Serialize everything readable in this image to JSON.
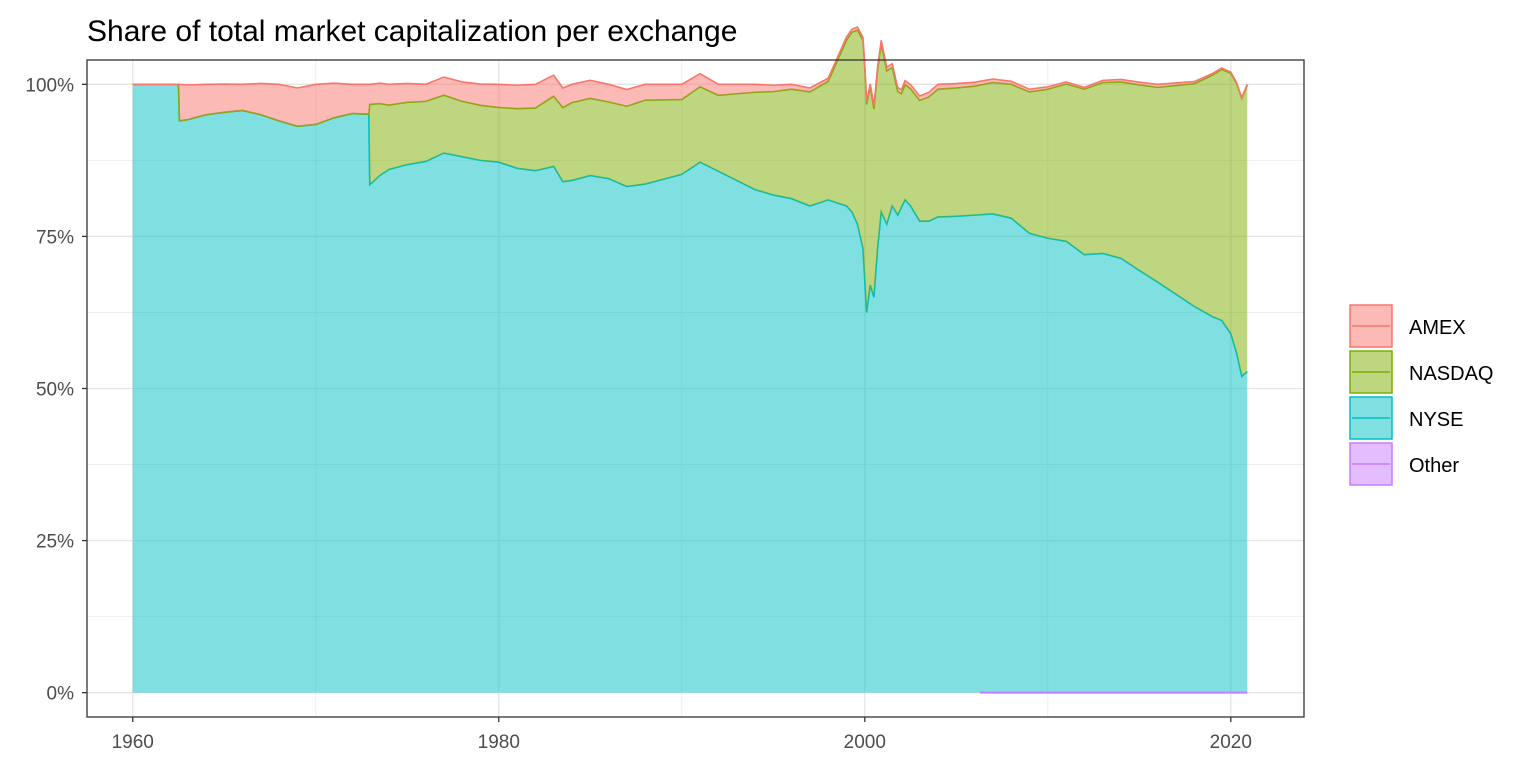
{
  "chart_data": {
    "type": "area",
    "stacked": true,
    "normalized": true,
    "title": "Share of total market capitalization per exchange",
    "xlabel": "",
    "ylabel": "",
    "xlim": [
      1957.5,
      2024.0
    ],
    "ylim": [
      -0.04,
      1.04
    ],
    "x_ticks": [
      1960,
      1980,
      2000,
      2020
    ],
    "x_tick_labels": [
      "1960",
      "1980",
      "2000",
      "2020"
    ],
    "y_ticks": [
      0,
      0.25,
      0.5,
      0.75,
      1.0
    ],
    "y_tick_labels": [
      "0%",
      "25%",
      "50%",
      "75%",
      "100%"
    ],
    "grid": true,
    "legend_position": "right",
    "colors": {
      "AMEX": "#F8766D",
      "NASDAQ": "#7CAE00",
      "NYSE": "#00BFC4",
      "Other": "#C77CFF"
    },
    "series": [
      {
        "name": "NYSE",
        "x": [
          1960.0,
          1962.5,
          1962.55,
          1963.0,
          1964.0,
          1965.0,
          1966.0,
          1967.0,
          1968.0,
          1969.0,
          1970.0,
          1971.0,
          1972.0,
          1972.9,
          1972.95,
          1973.5,
          1974.0,
          1975.0,
          1976.0,
          1977.0,
          1978.0,
          1979.0,
          1980.0,
          1981.0,
          1982.0,
          1983.0,
          1983.5,
          1984.0,
          1985.0,
          1986.0,
          1987.0,
          1988.0,
          1989.0,
          1990.0,
          1991.0,
          1992.0,
          1993.0,
          1994.0,
          1995.0,
          1996.0,
          1997.0,
          1998.0,
          1998.5,
          1999.0,
          1999.3,
          1999.6,
          1999.9,
          2000.1,
          2000.3,
          2000.5,
          2000.7,
          2000.9,
          2001.2,
          2001.5,
          2001.8,
          2002.2,
          2002.5,
          2003.0,
          2003.5,
          2004.0,
          2005.0,
          2006.0,
          2007.0,
          2008.0,
          2009.0,
          2010.0,
          2011.0,
          2012.0,
          2013.0,
          2014.0,
          2015.0,
          2016.0,
          2017.0,
          2018.0,
          2019.0,
          2019.5,
          2020.0,
          2020.3,
          2020.6,
          2020.9
        ],
        "values": [
          1.0,
          1.0,
          0.94,
          0.942,
          0.95,
          0.954,
          0.957,
          0.95,
          0.94,
          0.931,
          0.934,
          0.945,
          0.952,
          0.951,
          0.835,
          0.85,
          0.86,
          0.868,
          0.873,
          0.887,
          0.881,
          0.875,
          0.872,
          0.862,
          0.858,
          0.865,
          0.84,
          0.842,
          0.85,
          0.845,
          0.832,
          0.836,
          0.844,
          0.852,
          0.872,
          0.857,
          0.842,
          0.827,
          0.818,
          0.812,
          0.8,
          0.81,
          0.805,
          0.8,
          0.79,
          0.77,
          0.73,
          0.625,
          0.67,
          0.65,
          0.73,
          0.79,
          0.77,
          0.8,
          0.785,
          0.81,
          0.8,
          0.775,
          0.775,
          0.782,
          0.783,
          0.785,
          0.787,
          0.78,
          0.755,
          0.747,
          0.742,
          0.72,
          0.722,
          0.714,
          0.694,
          0.675,
          0.655,
          0.635,
          0.618,
          0.612,
          0.59,
          0.56,
          0.52,
          0.528
        ]
      },
      {
        "name": "NASDAQ",
        "x": [
          1960.0,
          1972.9,
          1972.95,
          1974.0,
          1976.0,
          1978.0,
          1980.0,
          1981.0,
          1982.0,
          1984.0,
          1986.0,
          1988.0,
          1990.0,
          1992.0,
          1994.0,
          1996.0,
          1998.0,
          2000.0,
          2002.0,
          2004.0,
          2006.0,
          2008.0,
          2010.0,
          2012.0,
          2014.0,
          2016.0,
          2018.0,
          2020.0,
          2020.9
        ],
        "values": [
          0.0,
          0.0,
          0.132,
          0.106,
          0.099,
          0.091,
          0.09,
          0.098,
          0.103,
          0.128,
          0.126,
          0.138,
          0.123,
          0.125,
          0.16,
          0.18,
          0.195,
          0.35,
          0.187,
          0.21,
          0.212,
          0.22,
          0.245,
          0.272,
          0.29,
          0.32,
          0.366,
          0.428,
          0.471
        ]
      },
      {
        "name": "AMEX",
        "x": [
          1960.0,
          1962.5,
          1962.55,
          1964.0,
          1966.0,
          1968.0,
          1970.0,
          1972.0,
          1972.9,
          1972.95,
          1974.0,
          1976.0,
          1978.0,
          1980.0,
          1982.0,
          1984.0,
          1986.0,
          1988.0,
          1990.0,
          1992.0,
          1994.0,
          1996.0,
          1998.0,
          2000.0,
          2004.0,
          2008.0,
          2012.0,
          2016.0,
          2020.0,
          2020.9
        ],
        "values": [
          0.0,
          0.0,
          0.06,
          0.05,
          0.043,
          0.06,
          0.066,
          0.048,
          0.049,
          0.033,
          0.034,
          0.028,
          0.032,
          0.038,
          0.039,
          0.03,
          0.029,
          0.026,
          0.025,
          0.018,
          0.013,
          0.008,
          0.005,
          0.005,
          0.008,
          0.005,
          0.003,
          0.005,
          0.002,
          0.001
        ]
      },
      {
        "name": "Other",
        "x": [
          2006.3,
          2020.9
        ],
        "values": [
          0.0,
          0.0
        ]
      }
    ]
  }
}
